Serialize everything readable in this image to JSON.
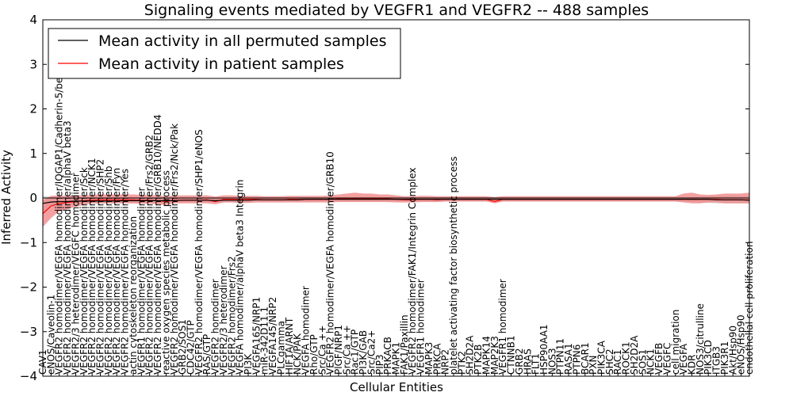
{
  "chart_data": {
    "type": "line",
    "title": "Signaling events mediated by VEGFR1 and VEGFR2 -- 488 samples",
    "xlabel": "Cellular Entities",
    "ylabel": "Inferred Activity",
    "ylim": [
      -4,
      4
    ],
    "yticks": [
      -4,
      -3,
      -2,
      -1,
      0,
      1,
      2,
      3,
      4
    ],
    "ytick_labels": [
      "−4",
      "−3",
      "−2",
      "−1",
      "0",
      "1",
      "2",
      "3",
      "4"
    ],
    "grid": false,
    "legend_position": "top-left",
    "x_count": 87,
    "x_labels": [
      "CAV1",
      "eNOS/Caveolin-1",
      "VEGFR2 homodimer/VEGFA homodimer/IQGAP1/Cadherin-5/beta catenin",
      "VEGFR2 homodimer/VEGFA homodimer/alphaV beta3",
      "VEGFR2/3 heterodimer/VEGFC homodimer",
      "VEGFR2 homodimer/VEGFA homodimer/Sck",
      "VEGFR2 homodimer/VEGFA homodimer/NCK1",
      "VEGFR2 homodimer/VEGFA homodimer/SHP2",
      "VEGFR2 homodimer/VEGFA homodimer/Shb",
      "VEGFR2 homodimer/VEGFA homodimer/Fyn",
      "VEGFR2 homodimer/VEGFA homodimer/Yes",
      "actin cytoskeleton reorganization",
      "VEGFR1 homodimer/VEGFA homodimer",
      "VEGFR2 homodimer/VEGFA homodimer/Frs2/GRB2",
      "VEGFR2 homodimer/VEGFA homodimer/GRB10/NEDD4",
      "reactive oxygen species metabolic process",
      "VEGFR2 homodimer/VEGFA homodimer/Frs2/Nck/Pak",
      "GRB2/SOS1",
      "CDC42/GTP",
      "VEGFR2 homodimer/VEGFA homodimer/SHP1/eNOS",
      "RAS/GTP",
      "VEGFR2 homodimer",
      "VEGFR2/3 heterodimer",
      "VEGFR2 homodimer/Frs2",
      "VEGFA homodimer/alphaV beta3 Integrin",
      "PI3K",
      "VEGFA165/NRP1",
      "miR-342D11.1",
      "VEGFA145/NRP2",
      "PLCgamma",
      "HIF1A/ARNT",
      "NCK/PAK",
      "VEGFA homodimer",
      "Rho/GTP",
      "Src/Ca ++",
      "VEGFR2 homodimer/VEGFA homodimer/GRB10",
      "PlGF/NRP1",
      "Src/Ca ++",
      "Rac1/GTP",
      "PI3K/GAB",
      "Src/Ca2+",
      "PIP3",
      "PRKACB",
      "MAPK1",
      "FAK1/Paxillin",
      "VEGFR2 homodimer/FAK1/Integrin Complex",
      "VEGFR1 homodimer",
      "MAPK3",
      "PRKCA",
      "NRP2",
      "platelet activating factor biosynthetic process",
      "PTK2",
      "SH2D2A",
      "PTK2B",
      "MAPK14",
      "MAP2K3",
      "VEGFR1 homodimer",
      "CTNNB1",
      "GRB2",
      "HRAS",
      "FLT1",
      "HSP90AA1",
      "NOS3",
      "PTPN11",
      "RASA1",
      "PTPN6",
      "BCAR1",
      "PXN",
      "PIK3CA",
      "SHC2",
      "RAC1",
      "ROCK1",
      "SH2D2A",
      "SOS1",
      "NCK1",
      "VEGFB",
      "VEGFC",
      "cell migration",
      "VEGFA",
      "KDR",
      "NOS3/citrulline",
      "PIK3CD",
      "ITGB3",
      "PIK3R1",
      "Akt/Hsp90",
      "eNOS/Hsp90",
      "endothelial cell proliferation"
    ],
    "series": [
      {
        "name": "Mean activity in all permuted samples",
        "color": "#000000",
        "values": [
          -0.12,
          -0.09,
          -0.08,
          -0.08,
          -0.07,
          -0.07,
          -0.07,
          -0.07,
          -0.07,
          -0.07,
          -0.06,
          -0.06,
          -0.06,
          -0.06,
          -0.06,
          -0.06,
          -0.06,
          -0.05,
          -0.05,
          -0.05,
          -0.05,
          -0.06,
          -0.05,
          -0.05,
          -0.05,
          -0.05,
          -0.04,
          -0.04,
          -0.04,
          -0.04,
          -0.04,
          -0.04,
          -0.03,
          -0.03,
          -0.03,
          -0.03,
          -0.03,
          -0.03,
          -0.03,
          -0.03,
          -0.03,
          -0.03,
          -0.03,
          -0.03,
          -0.03,
          -0.03,
          -0.03,
          -0.03,
          -0.03,
          -0.03,
          -0.03,
          -0.03,
          -0.03,
          -0.03,
          -0.03,
          -0.03,
          -0.03,
          -0.03,
          -0.03,
          -0.03,
          -0.03,
          -0.03,
          -0.03,
          -0.03,
          -0.03,
          -0.03,
          -0.03,
          -0.03,
          -0.03,
          -0.03,
          -0.03,
          -0.03,
          -0.03,
          -0.03,
          -0.03,
          -0.03,
          -0.03,
          -0.03,
          -0.03,
          -0.03,
          -0.03,
          -0.03,
          -0.04,
          -0.04,
          -0.04,
          -0.04,
          -0.05
        ],
        "band_low": [
          -0.35,
          -0.2,
          -0.16,
          -0.14,
          -0.14,
          -0.13,
          -0.13,
          -0.13,
          -0.13,
          -0.13,
          -0.12,
          -0.12,
          -0.12,
          -0.12,
          -0.12,
          -0.11,
          -0.11,
          -0.1,
          -0.1,
          -0.1,
          -0.1,
          -0.11,
          -0.1,
          -0.1,
          -0.1,
          -0.1,
          -0.09,
          -0.09,
          -0.09,
          -0.09,
          -0.09,
          -0.09,
          -0.08,
          -0.08,
          -0.08,
          -0.08,
          -0.08,
          -0.08,
          -0.08,
          -0.08,
          -0.08,
          -0.08,
          -0.08,
          -0.08,
          -0.08,
          -0.08,
          -0.08,
          -0.08,
          -0.08,
          -0.08,
          -0.08,
          -0.08,
          -0.08,
          -0.08,
          -0.08,
          -0.08,
          -0.08,
          -0.08,
          -0.08,
          -0.08,
          -0.08,
          -0.08,
          -0.08,
          -0.08,
          -0.08,
          -0.08,
          -0.08,
          -0.08,
          -0.08,
          -0.08,
          -0.08,
          -0.08,
          -0.08,
          -0.08,
          -0.08,
          -0.08,
          -0.08,
          -0.08,
          -0.08,
          -0.09,
          -0.1,
          -0.11,
          -0.12,
          -0.12,
          -0.12,
          -0.12,
          -0.12
        ],
        "band_high": [
          0.05,
          0.03,
          0.02,
          0.02,
          0.02,
          0.01,
          0.01,
          0.01,
          0.01,
          0.01,
          0.01,
          0.01,
          0.01,
          0.01,
          0.01,
          0.01,
          0.01,
          0.01,
          0.01,
          0.01,
          0.01,
          0.01,
          0.01,
          0.01,
          0.01,
          0.01,
          0.01,
          0.01,
          0.01,
          0.01,
          0.01,
          0.01,
          0.01,
          0.01,
          0.01,
          0.01,
          0.01,
          0.01,
          0.01,
          0.01,
          0.01,
          0.01,
          0.01,
          0.01,
          0.01,
          0.01,
          0.01,
          0.01,
          0.01,
          0.01,
          0.01,
          0.01,
          0.01,
          0.01,
          0.01,
          0.01,
          0.01,
          0.01,
          0.01,
          0.01,
          0.01,
          0.01,
          0.01,
          0.01,
          0.01,
          0.01,
          0.01,
          0.01,
          0.01,
          0.01,
          0.01,
          0.01,
          0.01,
          0.01,
          0.01,
          0.01,
          0.01,
          0.01,
          0.01,
          0.02,
          0.03,
          0.04,
          0.05,
          0.05,
          0.05,
          0.05,
          0.05
        ]
      },
      {
        "name": "Mean activity in patient samples",
        "color": "#ff0000",
        "values": [
          -0.35,
          -0.18,
          -0.12,
          -0.1,
          -0.08,
          -0.06,
          -0.05,
          -0.04,
          -0.04,
          -0.04,
          -0.04,
          -0.04,
          -0.05,
          -0.05,
          -0.06,
          -0.08,
          -0.05,
          -0.05,
          -0.05,
          -0.05,
          -0.04,
          -0.08,
          -0.03,
          -0.03,
          -0.03,
          -0.03,
          -0.03,
          -0.04,
          -0.04,
          -0.04,
          -0.03,
          -0.03,
          -0.03,
          -0.03,
          -0.03,
          -0.03,
          -0.02,
          -0.02,
          -0.02,
          -0.02,
          -0.02,
          -0.02,
          -0.02,
          -0.03,
          -0.04,
          -0.04,
          -0.03,
          -0.03,
          -0.04,
          -0.03,
          -0.03,
          -0.03,
          -0.03,
          -0.03,
          -0.03,
          -0.08,
          -0.03,
          -0.03,
          -0.03,
          -0.03,
          -0.03,
          -0.03,
          -0.03,
          -0.03,
          -0.03,
          -0.03,
          -0.03,
          -0.03,
          -0.03,
          -0.03,
          -0.03,
          -0.03,
          -0.03,
          -0.03,
          -0.03,
          -0.03,
          -0.03,
          -0.03,
          -0.03,
          -0.03,
          -0.03,
          -0.03,
          -0.03,
          -0.04,
          -0.04,
          -0.04,
          -0.04
        ],
        "band_low": [
          -0.65,
          -0.45,
          -0.3,
          -0.25,
          -0.2,
          -0.15,
          -0.12,
          -0.12,
          -0.12,
          -0.12,
          -0.12,
          -0.12,
          -0.13,
          -0.13,
          -0.14,
          -0.16,
          -0.12,
          -0.12,
          -0.12,
          -0.12,
          -0.12,
          -0.14,
          -0.1,
          -0.1,
          -0.11,
          -0.11,
          -0.1,
          -0.1,
          -0.1,
          -0.1,
          -0.1,
          -0.1,
          -0.1,
          -0.1,
          -0.1,
          -0.1,
          -0.09,
          -0.09,
          -0.09,
          -0.09,
          -0.09,
          -0.09,
          -0.09,
          -0.1,
          -0.1,
          -0.1,
          -0.09,
          -0.09,
          -0.09,
          -0.08,
          -0.08,
          -0.08,
          -0.08,
          -0.08,
          -0.08,
          -0.12,
          -0.08,
          -0.08,
          -0.08,
          -0.08,
          -0.08,
          -0.08,
          -0.08,
          -0.08,
          -0.08,
          -0.08,
          -0.08,
          -0.08,
          -0.08,
          -0.08,
          -0.08,
          -0.08,
          -0.08,
          -0.08,
          -0.08,
          -0.08,
          -0.08,
          -0.08,
          -0.1,
          -0.12,
          -0.12,
          -0.1,
          -0.1,
          -0.12,
          -0.12,
          -0.12,
          -0.12
        ],
        "band_high": [
          -0.05,
          0.05,
          0.06,
          0.05,
          0.06,
          0.06,
          0.07,
          0.08,
          0.08,
          0.08,
          0.08,
          0.08,
          0.07,
          0.07,
          0.06,
          0.04,
          0.06,
          0.06,
          0.06,
          0.06,
          0.06,
          0.03,
          0.06,
          0.06,
          0.05,
          0.05,
          0.05,
          0.04,
          0.04,
          0.04,
          0.05,
          0.05,
          0.05,
          0.05,
          0.05,
          0.06,
          0.08,
          0.1,
          0.12,
          0.1,
          0.1,
          0.08,
          0.08,
          0.06,
          0.04,
          0.04,
          0.05,
          0.05,
          0.04,
          0.04,
          0.04,
          0.04,
          0.04,
          0.04,
          0.04,
          0.02,
          0.04,
          0.04,
          0.04,
          0.04,
          0.04,
          0.04,
          0.04,
          0.04,
          0.04,
          0.04,
          0.04,
          0.04,
          0.04,
          0.04,
          0.04,
          0.04,
          0.04,
          0.04,
          0.04,
          0.04,
          0.04,
          0.04,
          0.1,
          0.12,
          0.08,
          0.07,
          0.08,
          0.1,
          0.1,
          0.1,
          0.12
        ]
      }
    ]
  }
}
